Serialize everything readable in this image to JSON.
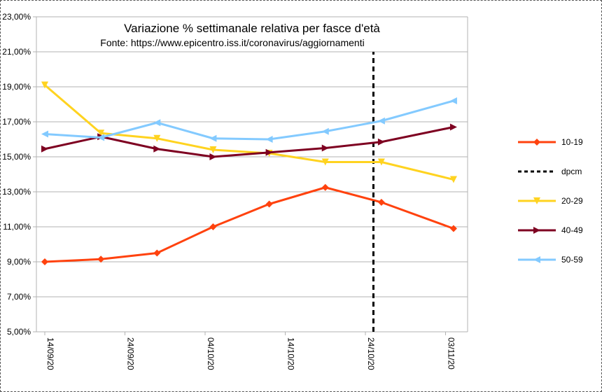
{
  "chart_data": {
    "type": "line",
    "title": "Variazione % settimanale relativa per fasce d'età",
    "subtitle": "Fonte: https://www.epicentro.iss.it/coronavirus/aggiornamenti",
    "ylim": [
      5,
      23
    ],
    "y_ticks": [
      "5,00%",
      "7,00%",
      "9,00%",
      "11,00%",
      "13,00%",
      "15,00%",
      "17,00%",
      "19,00%",
      "21,00%",
      "23,00%"
    ],
    "x_ticks": [
      "14/09/20",
      "24/09/20",
      "04/10/20",
      "14/10/20",
      "24/10/20",
      "03/11/20"
    ],
    "x_start": "14/09/20",
    "grid": "horizontal",
    "legend_position": "right",
    "series": [
      {
        "name": "10-19",
        "color": "#ff420e",
        "marker": "diamond",
        "x": [
          "14/09/20",
          "21/09/20",
          "28/09/20",
          "05/10/20",
          "12/10/20",
          "19/10/20",
          "26/10/20",
          "04/11/20"
        ],
        "values": [
          9.0,
          9.15,
          9.5,
          11.0,
          12.3,
          13.25,
          12.4,
          10.9
        ]
      },
      {
        "name": "dpcm",
        "color": "#000000",
        "style": "dashed-vertical",
        "x": [
          "25/10/20",
          "25/10/20"
        ],
        "values": [
          5,
          21.0
        ]
      },
      {
        "name": "20-29",
        "color": "#ffd320",
        "marker": "triangle-down",
        "x": [
          "14/09/20",
          "21/09/20",
          "28/09/20",
          "05/10/20",
          "12/10/20",
          "19/10/20",
          "26/10/20",
          "04/11/20"
        ],
        "values": [
          19.1,
          16.35,
          16.05,
          15.4,
          15.2,
          14.7,
          14.7,
          13.7
        ]
      },
      {
        "name": "40-49",
        "color": "#7e0021",
        "marker": "triangle-right",
        "x": [
          "14/09/20",
          "21/09/20",
          "28/09/20",
          "05/10/20",
          "12/10/20",
          "19/10/20",
          "26/10/20",
          "04/11/20"
        ],
        "values": [
          15.45,
          16.15,
          15.45,
          15.0,
          15.25,
          15.5,
          15.85,
          16.7
        ]
      },
      {
        "name": "50-59",
        "color": "#83caff",
        "marker": "triangle-left",
        "x": [
          "14/09/20",
          "21/09/20",
          "28/09/20",
          "05/10/20",
          "12/10/20",
          "19/10/20",
          "26/10/20",
          "04/11/20"
        ],
        "values": [
          16.3,
          16.1,
          16.95,
          16.05,
          16.0,
          16.45,
          17.05,
          18.2
        ]
      }
    ]
  }
}
